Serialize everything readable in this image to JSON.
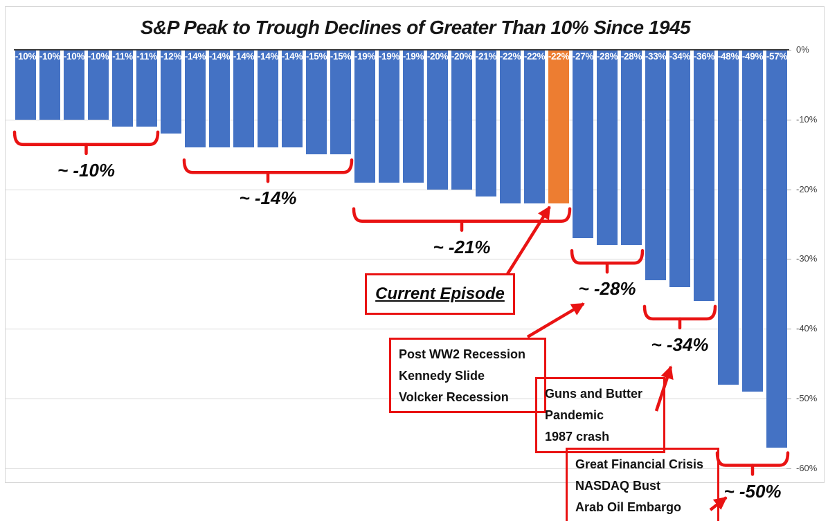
{
  "title": "S&P Peak to Trough Declines of Greater Than 10% Since 1945",
  "chart_data": {
    "type": "bar",
    "title": "S&P Peak to Trough Declines of Greater Than 10% Since 1945",
    "unit": "percent",
    "values": [
      -10,
      -10,
      -10,
      -10,
      -11,
      -11,
      -12,
      -14,
      -14,
      -14,
      -14,
      -14,
      -15,
      -15,
      -19,
      -19,
      -19,
      -20,
      -20,
      -21,
      -22,
      -22,
      -22,
      -27,
      -28,
      -28,
      -33,
      -34,
      -36,
      -48,
      -49,
      -57
    ],
    "bar_labels": [
      "-10%",
      "-10%",
      "-10%",
      "-10%",
      "-11%",
      "-11%",
      "-12%",
      "-14%",
      "-14%",
      "-14%",
      "-14%",
      "-14%",
      "-15%",
      "-15%",
      "-19%",
      "-19%",
      "-19%",
      "-20%",
      "-20%",
      "-21%",
      "-22%",
      "-22%",
      "-22%",
      "-27%",
      "-28%",
      "-28%",
      "-33%",
      "-34%",
      "-36%",
      "-48%",
      "-49%",
      "-57%"
    ],
    "highlight_index": 22,
    "bar_color": "#4472C4",
    "highlight_color": "#ED7D31",
    "ylim": [
      -60,
      0
    ],
    "y_tick_values": [
      0,
      -10,
      -20,
      -30,
      -40,
      -50,
      -60
    ],
    "y_tick_labels": [
      "0%",
      "-10%",
      "-20%",
      "-30%",
      "-40%",
      "-50%",
      "-60%"
    ],
    "grid": true,
    "axis_side": "right",
    "legend": "none"
  },
  "annotations": {
    "annotation_color": "#E91313",
    "groups": [
      {
        "label": "~ -10%",
        "from_bar": 0,
        "to_bar": 5
      },
      {
        "label": "~ -14%",
        "from_bar": 7,
        "to_bar": 13
      },
      {
        "label": "~ -21%",
        "from_bar": 14,
        "to_bar": 22
      },
      {
        "label": "~ -28%",
        "from_bar": 23,
        "to_bar": 25
      },
      {
        "label": "~ -34%",
        "from_bar": 26,
        "to_bar": 28
      },
      {
        "label": "~ -50%",
        "from_bar": 29,
        "to_bar": 31
      }
    ],
    "callout": "Current Episode",
    "boxes": [
      {
        "id": "post-ww2",
        "lines": [
          "Post WW2 Recession",
          "Kennedy Slide",
          "Volcker Recession"
        ]
      },
      {
        "id": "guns-butter",
        "lines": [
          "Guns and Butter",
          "Pandemic",
          "1987 crash"
        ]
      },
      {
        "id": "gfc",
        "lines": [
          "Great Financial Crisis",
          "NASDAQ Bust",
          "Arab Oil Embargo"
        ]
      }
    ]
  }
}
